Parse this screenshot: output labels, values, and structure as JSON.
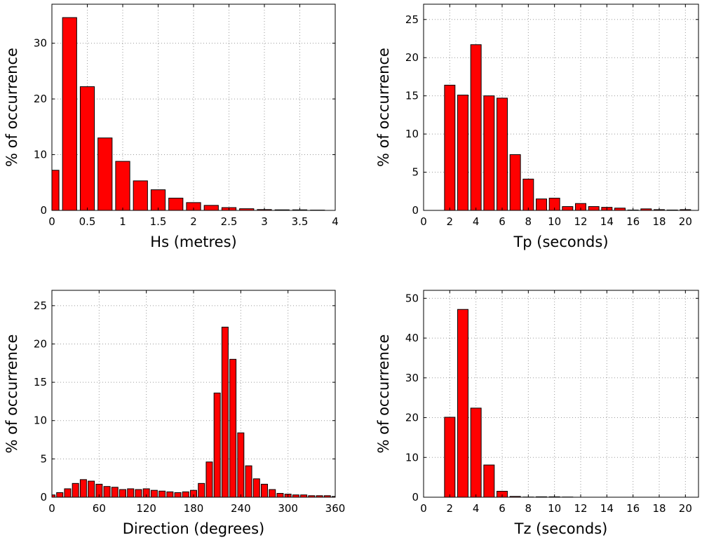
{
  "colors": {
    "bar": "#ff0000",
    "edge": "#000000",
    "grid": "#9a9a9a"
  },
  "chart_data": [
    {
      "type": "bar",
      "xlabel": "Hs (metres)",
      "ylabel": "% of occurrence",
      "xlim": [
        0,
        4
      ],
      "ylim": [
        0,
        37
      ],
      "xticks": [
        0,
        0.5,
        1,
        1.5,
        2,
        2.5,
        3,
        3.5,
        4
      ],
      "xtick_labels": [
        "0",
        "0.5",
        "1",
        "1.5",
        "2",
        "2.5",
        "3",
        "3.5",
        "4"
      ],
      "yticks": [
        0,
        10,
        20,
        30
      ],
      "ytick_labels": [
        "0",
        "10",
        "20",
        "30"
      ],
      "bar_width": 0.2,
      "grid": true,
      "x": [
        0,
        0.25,
        0.5,
        0.75,
        1,
        1.25,
        1.5,
        1.75,
        2,
        2.25,
        2.5,
        2.75,
        3,
        3.25,
        3.5,
        3.75
      ],
      "values": [
        7.2,
        34.6,
        22.2,
        13.0,
        8.8,
        5.3,
        3.7,
        2.2,
        1.4,
        0.9,
        0.5,
        0.3,
        0.15,
        0.1,
        0.1,
        0.05
      ]
    },
    {
      "type": "bar",
      "xlabel": "Tp (seconds)",
      "ylabel": "% of occurrence",
      "xlim": [
        0,
        21
      ],
      "ylim": [
        0,
        27
      ],
      "xticks": [
        0,
        2,
        4,
        6,
        8,
        10,
        12,
        14,
        16,
        18,
        20
      ],
      "xtick_labels": [
        "0",
        "2",
        "4",
        "6",
        "8",
        "10",
        "12",
        "14",
        "16",
        "18",
        "20"
      ],
      "yticks": [
        0,
        5,
        10,
        15,
        20,
        25
      ],
      "ytick_labels": [
        "0",
        "5",
        "10",
        "15",
        "20",
        "25"
      ],
      "bar_width": 0.8,
      "grid": true,
      "x": [
        2,
        3,
        4,
        5,
        6,
        7,
        8,
        9,
        10,
        11,
        12,
        13,
        14,
        15,
        16,
        17,
        18,
        19,
        20
      ],
      "values": [
        16.4,
        15.1,
        21.7,
        15.0,
        14.7,
        7.3,
        4.1,
        1.5,
        1.6,
        0.5,
        0.9,
        0.5,
        0.4,
        0.3,
        0.05,
        0.2,
        0.1,
        0.05,
        0.1
      ]
    },
    {
      "type": "bar",
      "xlabel": "Direction (degrees)",
      "ylabel": "% of occurrence",
      "xlim": [
        0,
        360
      ],
      "ylim": [
        0,
        27
      ],
      "xticks": [
        0,
        60,
        120,
        180,
        240,
        300,
        360
      ],
      "xtick_labels": [
        "0",
        "60",
        "120",
        "180",
        "240",
        "300",
        "360"
      ],
      "yticks": [
        0,
        5,
        10,
        15,
        20,
        25
      ],
      "ytick_labels": [
        "0",
        "5",
        "10",
        "15",
        "20",
        "25"
      ],
      "bar_width": 8,
      "grid": true,
      "x": [
        0,
        10,
        20,
        30,
        40,
        50,
        60,
        70,
        80,
        90,
        100,
        110,
        120,
        130,
        140,
        150,
        160,
        170,
        180,
        190,
        200,
        210,
        220,
        230,
        240,
        250,
        260,
        270,
        280,
        290,
        300,
        310,
        320,
        330,
        340,
        350,
        360
      ],
      "values": [
        0.3,
        0.6,
        1.1,
        1.8,
        2.3,
        2.1,
        1.7,
        1.4,
        1.3,
        1.0,
        1.1,
        1.0,
        1.1,
        0.9,
        0.8,
        0.7,
        0.6,
        0.7,
        0.9,
        1.8,
        4.6,
        13.6,
        22.2,
        18.0,
        8.4,
        4.1,
        2.4,
        1.7,
        1.0,
        0.5,
        0.4,
        0.3,
        0.3,
        0.2,
        0.2,
        0.2,
        0.1
      ]
    },
    {
      "type": "bar",
      "xlabel": "Tz (seconds)",
      "ylabel": "% of occurrence",
      "xlim": [
        0,
        21
      ],
      "ylim": [
        0,
        52
      ],
      "xticks": [
        0,
        2,
        4,
        6,
        8,
        10,
        12,
        14,
        16,
        18,
        20
      ],
      "xtick_labels": [
        "0",
        "2",
        "4",
        "6",
        "8",
        "10",
        "12",
        "14",
        "16",
        "18",
        "20"
      ],
      "yticks": [
        0,
        10,
        20,
        30,
        40,
        50
      ],
      "ytick_labels": [
        "0",
        "10",
        "20",
        "30",
        "40",
        "50"
      ],
      "bar_width": 0.8,
      "grid": true,
      "x": [
        2,
        3,
        4,
        5,
        6,
        7,
        8,
        9,
        10,
        11
      ],
      "values": [
        20.1,
        47.2,
        22.4,
        8.1,
        1.5,
        0.2,
        0.05,
        0.1,
        0.1,
        0.05
      ]
    }
  ]
}
